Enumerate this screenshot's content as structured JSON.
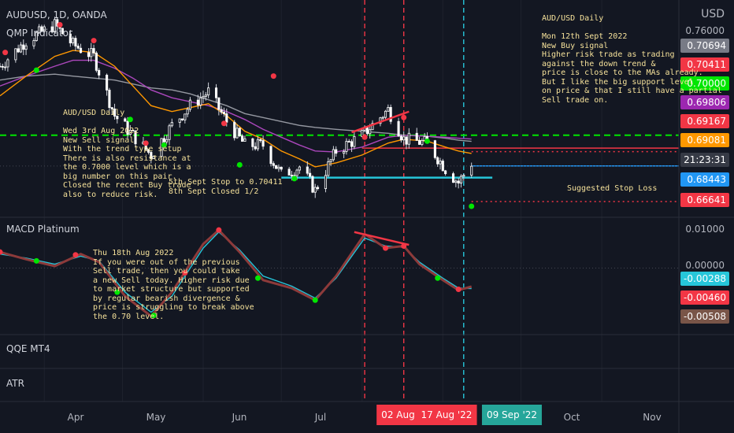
{
  "header": {
    "symbol": "AUDUSD, 1D, OANDA",
    "indicator": "QMP Indicator",
    "currency": "USD"
  },
  "panes": {
    "macd": "MACD Platinum",
    "qqe": "QQE MT4",
    "atr": "ATR"
  },
  "notes": {
    "sell": "AUD/USD Daily\n\nWed 3rd Aug 2022\nNew Sell signal\nWith the trend type setup\nThere is also resistance at\nthe 0.7000 level which is a\nbig number on this pair.\nClosed the recent Buy trade\nalso to reduce risk.",
    "stop": "5th Sept Stop to 0.70411\n8th Sept Closed 1/2",
    "macd": "Thu 18th Aug 2022\nIf you were out of the previous\nSell trade, then you could take\na new Sell today. Higher risk due\nto market structure but supported\nby regular bearish divergence &\nprice is struggling to break above\nthe 0.70 level.",
    "buy": "AUD/USD Daily\n\nMon 12th Sept 2022\nNew Buy signal\nHigher risk trade as trading\nagainst the down trend &\nprice is close to the MAs already.\nBut I like the big support level\non price & that I still have a partial\nSell trade on.",
    "stop_loss": "Suggested Stop Loss"
  },
  "price_axis": {
    "top_label": "0.76000",
    "badges": [
      {
        "text": "0.70694",
        "color": "#787b86"
      },
      {
        "text": "0.70411",
        "color": "#f23645"
      },
      {
        "text": "0.70000",
        "color": "#00e600"
      },
      {
        "text": "0.69806",
        "color": "#9c27b0"
      },
      {
        "text": "0.69167",
        "color": "#f23645"
      },
      {
        "text": "0.69081",
        "color": "#ff9800"
      },
      {
        "text": "21:23:31",
        "color": "#363a45"
      },
      {
        "text": "0.68443",
        "color": "#2196f3"
      },
      {
        "text": "0.66641",
        "color": "#f23645"
      }
    ]
  },
  "macd_axis": {
    "top_label": "0.01000",
    "zero_label": "0.00000",
    "badges": [
      {
        "text": "-0.00288",
        "color": "#26c6da"
      },
      {
        "text": "-0.00460",
        "color": "#f23645"
      },
      {
        "text": "-0.00508",
        "color": "#795548"
      }
    ]
  },
  "time_axis": {
    "months": [
      "Apr",
      "May",
      "Jun",
      "Jul",
      "Oct",
      "Nov"
    ],
    "date_badges": [
      {
        "text": "02 Aug '",
        "color": "#f23645"
      },
      {
        "text": "17 Aug '22",
        "color": "#f23645"
      },
      {
        "text": "09 Sep '22",
        "color": "#26a69a"
      }
    ]
  },
  "chart_data": {
    "type": "candlestick",
    "title": "AUDUSD, 1D, OANDA",
    "x_range": [
      "2022-03-15",
      "2022-11-30"
    ],
    "ylim": [
      0.66,
      0.763
    ],
    "levels": [
      {
        "name": "resistance",
        "value": 0.7,
        "color": "#00e600",
        "style": "dashed"
      },
      {
        "name": "stop",
        "value": 0.69167,
        "color": "#f23645",
        "style": "dotted"
      },
      {
        "name": "support",
        "value": 0.6785,
        "color": "#26c6da",
        "style": "solid"
      },
      {
        "name": "stop loss",
        "value": 0.66641,
        "color": "#f23645",
        "style": "dotted"
      },
      {
        "name": "current",
        "value": 0.68443,
        "color": "#2196f3",
        "style": "solid"
      }
    ],
    "vertical_markers": [
      {
        "date": "2022-08-02",
        "color": "#f23645"
      },
      {
        "date": "2022-08-17",
        "color": "#f23645"
      },
      {
        "date": "2022-09-09",
        "color": "#26c6da"
      }
    ],
    "price_path": {
      "dates": [
        "2022-03-15",
        "2022-03-25",
        "2022-04-05",
        "2022-04-12",
        "2022-04-20",
        "2022-04-28",
        "2022-05-05",
        "2022-05-12",
        "2022-05-20",
        "2022-05-27",
        "2022-06-03",
        "2022-06-10",
        "2022-06-17",
        "2022-06-24",
        "2022-07-01",
        "2022-07-08",
        "2022-07-14",
        "2022-07-22",
        "2022-08-01",
        "2022-08-11",
        "2022-08-17",
        "2022-08-26",
        "2022-09-02",
        "2022-09-07",
        "2022-09-12"
      ],
      "close": [
        0.735,
        0.748,
        0.756,
        0.746,
        0.74,
        0.71,
        0.7,
        0.69,
        0.705,
        0.715,
        0.722,
        0.707,
        0.695,
        0.695,
        0.68,
        0.684,
        0.672,
        0.692,
        0.7,
        0.713,
        0.698,
        0.696,
        0.683,
        0.676,
        0.686
      ]
    },
    "moving_averages": [
      {
        "name": "MA slow",
        "color": "#9598a1",
        "values": [
          0.728,
          0.73,
          0.731,
          0.73,
          0.729,
          0.728,
          0.726,
          0.724,
          0.723,
          0.721,
          0.718,
          0.715,
          0.711,
          0.709,
          0.707,
          0.705,
          0.704,
          0.703,
          0.702,
          0.701,
          0.7,
          0.6995,
          0.6985,
          0.6975,
          0.6969
        ]
      },
      {
        "name": "MA mid",
        "color": "#ab47bc",
        "values": [
          0.725,
          0.73,
          0.735,
          0.738,
          0.738,
          0.734,
          0.729,
          0.723,
          0.719,
          0.717,
          0.715,
          0.712,
          0.708,
          0.703,
          0.699,
          0.695,
          0.692,
          0.6915,
          0.694,
          0.699,
          0.7,
          0.6995,
          0.699,
          0.6985,
          0.6981
        ]
      },
      {
        "name": "MA fast",
        "color": "#ff9800",
        "values": [
          0.72,
          0.73,
          0.74,
          0.743,
          0.742,
          0.735,
          0.725,
          0.715,
          0.712,
          0.714,
          0.716,
          0.71,
          0.702,
          0.698,
          0.692,
          0.688,
          0.684,
          0.686,
          0.69,
          0.696,
          0.698,
          0.697,
          0.694,
          0.692,
          0.6908
        ]
      }
    ],
    "macd": {
      "ylim": [
        -0.016,
        0.0115
      ],
      "dates": [
        "2022-03-15",
        "2022-03-25",
        "2022-04-05",
        "2022-04-15",
        "2022-04-22",
        "2022-05-02",
        "2022-05-12",
        "2022-05-20",
        "2022-06-01",
        "2022-06-07",
        "2022-06-15",
        "2022-06-24",
        "2022-07-05",
        "2022-07-14",
        "2022-07-22",
        "2022-08-02",
        "2022-08-10",
        "2022-08-17",
        "2022-08-23",
        "2022-09-01",
        "2022-09-07",
        "2022-09-12"
      ],
      "main": [
        0.004,
        0.0022,
        0.0005,
        0.0035,
        0.0015,
        -0.007,
        -0.012,
        -0.006,
        0.006,
        0.0095,
        0.004,
        -0.003,
        -0.005,
        -0.008,
        -0.002,
        0.0085,
        0.005,
        0.0055,
        0.001,
        -0.003,
        -0.0055,
        -0.0046
      ],
      "signal": [
        0.0035,
        0.0025,
        0.001,
        0.003,
        0.0018,
        -0.006,
        -0.011,
        -0.007,
        0.005,
        0.009,
        0.0045,
        -0.002,
        -0.0045,
        -0.0075,
        -0.0025,
        0.0075,
        0.0055,
        0.0052,
        0.0015,
        -0.0025,
        -0.005,
        -0.0051
      ]
    }
  }
}
